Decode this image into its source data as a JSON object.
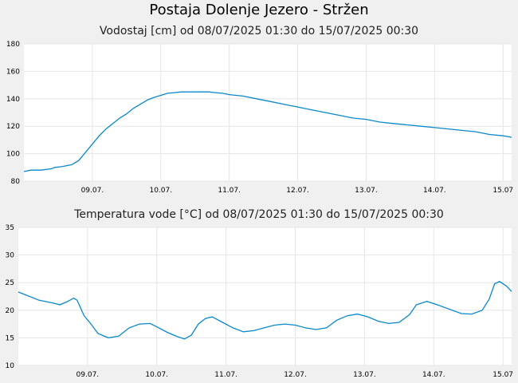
{
  "title": "Postaja Dolenje Jezero - Stržen",
  "colors": {
    "plot_bg": "#ffffff",
    "page_bg": "#f0f0f0",
    "line": "#0a88cc",
    "grid": "#e6e6e6"
  },
  "chart_data": [
    {
      "type": "line",
      "title": "Vodostaj [cm] od 08/07/2025 01:30 do 15/07/2025 00:30",
      "xlabel": "",
      "ylabel": "",
      "x_range": [
        0,
        7.125
      ],
      "ylim": [
        80,
        180
      ],
      "yticks": [
        80,
        100,
        120,
        140,
        160,
        180
      ],
      "xticks": [
        {
          "x": 1,
          "label": "09.07."
        },
        {
          "x": 2,
          "label": "10.07."
        },
        {
          "x": 3,
          "label": "11.07."
        },
        {
          "x": 4,
          "label": "12.07."
        },
        {
          "x": 5,
          "label": "13.07."
        },
        {
          "x": 6,
          "label": "14.07."
        },
        {
          "x": 7,
          "label": "15.07"
        }
      ],
      "grid": true,
      "series": [
        {
          "x": [
            0,
            0.1,
            0.25,
            0.4,
            0.45,
            0.55,
            0.7,
            0.8,
            0.9,
            1.0,
            1.1,
            1.2,
            1.3,
            1.4,
            1.5,
            1.6,
            1.7,
            1.8,
            1.9,
            2.0,
            2.1,
            2.2,
            2.3,
            2.4,
            2.5,
            2.6,
            2.7,
            2.8,
            2.9,
            3.0,
            3.2,
            3.4,
            3.6,
            3.8,
            4.0,
            4.2,
            4.4,
            4.6,
            4.8,
            5.0,
            5.2,
            5.4,
            5.6,
            5.8,
            6.0,
            6.2,
            6.4,
            6.6,
            6.8,
            7.0,
            7.125
          ],
          "values": [
            87,
            88,
            88,
            89,
            90,
            90.5,
            92,
            95,
            101,
            107,
            113,
            118,
            122,
            126,
            129,
            133,
            136,
            139,
            141,
            142.5,
            144,
            144.5,
            145,
            145,
            145,
            145,
            145,
            144.5,
            144,
            143,
            142,
            140,
            138,
            136,
            134,
            132,
            130,
            128,
            126,
            125,
            123,
            122,
            121,
            120,
            119,
            118,
            117,
            116,
            114,
            113,
            112
          ]
        }
      ]
    },
    {
      "type": "line",
      "title": "Temperatura vode [°C] od 08/07/2025 01:30 do 15/07/2025 00:30",
      "xlabel": "",
      "ylabel": "",
      "x_range": [
        0,
        7.125
      ],
      "ylim": [
        10,
        35
      ],
      "yticks": [
        10,
        15,
        20,
        25,
        30,
        35
      ],
      "xticks": [
        {
          "x": 1,
          "label": "09.07."
        },
        {
          "x": 2,
          "label": "10.07."
        },
        {
          "x": 3,
          "label": "11.07."
        },
        {
          "x": 4,
          "label": "12.07."
        },
        {
          "x": 5,
          "label": "13.07."
        },
        {
          "x": 6,
          "label": "14.07."
        },
        {
          "x": 7,
          "label": "15.07"
        }
      ],
      "grid": true,
      "series": [
        {
          "x": [
            0,
            0.1,
            0.3,
            0.5,
            0.6,
            0.7,
            0.8,
            0.85,
            0.95,
            1.05,
            1.15,
            1.3,
            1.45,
            1.6,
            1.75,
            1.9,
            2.0,
            2.15,
            2.3,
            2.4,
            2.5,
            2.6,
            2.7,
            2.8,
            2.95,
            3.1,
            3.25,
            3.4,
            3.55,
            3.7,
            3.85,
            4.0,
            4.15,
            4.3,
            4.45,
            4.6,
            4.75,
            4.9,
            5.05,
            5.2,
            5.35,
            5.5,
            5.65,
            5.75,
            5.9,
            6.05,
            6.2,
            6.4,
            6.55,
            6.7,
            6.8,
            6.88,
            6.95,
            7.05,
            7.125
          ],
          "values": [
            23.3,
            22.8,
            21.8,
            21.3,
            21.0,
            21.5,
            22.2,
            21.8,
            19.0,
            17.5,
            15.8,
            15.0,
            15.3,
            16.8,
            17.5,
            17.6,
            17.0,
            16.0,
            15.2,
            14.8,
            15.5,
            17.5,
            18.5,
            18.8,
            17.8,
            16.8,
            16.1,
            16.3,
            16.8,
            17.3,
            17.5,
            17.3,
            16.8,
            16.5,
            16.8,
            18.2,
            19.0,
            19.3,
            18.8,
            18.0,
            17.6,
            17.8,
            19.2,
            21.0,
            21.6,
            21.0,
            20.3,
            19.4,
            19.3,
            20.0,
            22.0,
            24.8,
            25.2,
            24.4,
            23.4
          ]
        }
      ]
    }
  ]
}
